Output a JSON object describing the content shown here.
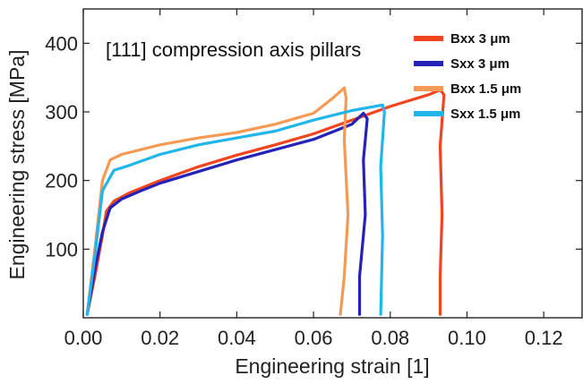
{
  "chart_data": {
    "type": "line",
    "title": "",
    "annotation": "[111] compression axis pillars",
    "xlabel": "Engineering strain [1]",
    "ylabel": "Engineering stress [MPa]",
    "xlim": [
      0,
      0.13
    ],
    "ylim": [
      0,
      450
    ],
    "x_ticks": [
      0.0,
      0.02,
      0.04,
      0.06,
      0.08,
      0.1,
      0.12
    ],
    "x_tick_labels": [
      "0.00",
      "0.02",
      "0.04",
      "0.06",
      "0.08",
      "0.10",
      "0.12"
    ],
    "y_ticks": [
      100,
      200,
      300,
      400
    ],
    "y_tick_labels": [
      "100",
      "200",
      "300",
      "400"
    ],
    "grid": false,
    "legend_position": "top-right",
    "series": [
      {
        "name": "Bxx 3 μm",
        "color": "#f0451e",
        "points": [
          [
            0.001,
            5
          ],
          [
            0.003,
            60
          ],
          [
            0.005,
            120
          ],
          [
            0.006,
            155
          ],
          [
            0.008,
            170
          ],
          [
            0.012,
            182
          ],
          [
            0.02,
            200
          ],
          [
            0.03,
            220
          ],
          [
            0.04,
            237
          ],
          [
            0.05,
            252
          ],
          [
            0.06,
            268
          ],
          [
            0.07,
            288
          ],
          [
            0.08,
            308
          ],
          [
            0.09,
            325
          ],
          [
            0.093,
            332
          ],
          [
            0.094,
            325
          ],
          [
            0.093,
            250
          ],
          [
            0.0935,
            150
          ],
          [
            0.093,
            60
          ],
          [
            0.093,
            5
          ]
        ]
      },
      {
        "name": "Sxx 3 μm",
        "color": "#2522b8",
        "points": [
          [
            0.001,
            5
          ],
          [
            0.003,
            70
          ],
          [
            0.005,
            125
          ],
          [
            0.007,
            160
          ],
          [
            0.01,
            173
          ],
          [
            0.015,
            185
          ],
          [
            0.02,
            196
          ],
          [
            0.03,
            213
          ],
          [
            0.04,
            230
          ],
          [
            0.05,
            245
          ],
          [
            0.06,
            260
          ],
          [
            0.07,
            282
          ],
          [
            0.073,
            298
          ],
          [
            0.074,
            290
          ],
          [
            0.073,
            230
          ],
          [
            0.0735,
            150
          ],
          [
            0.072,
            60
          ],
          [
            0.072,
            5
          ]
        ]
      },
      {
        "name": "Bxx 1.5 μm",
        "color": "#f59a55",
        "points": [
          [
            0.001,
            5
          ],
          [
            0.003,
            100
          ],
          [
            0.005,
            200
          ],
          [
            0.007,
            230
          ],
          [
            0.01,
            238
          ],
          [
            0.02,
            252
          ],
          [
            0.03,
            262
          ],
          [
            0.04,
            270
          ],
          [
            0.05,
            282
          ],
          [
            0.06,
            298
          ],
          [
            0.065,
            320
          ],
          [
            0.068,
            335
          ],
          [
            0.0685,
            320
          ],
          [
            0.068,
            260
          ],
          [
            0.069,
            150
          ],
          [
            0.068,
            60
          ],
          [
            0.067,
            5
          ]
        ]
      },
      {
        "name": "Sxx 1.5 μm",
        "color": "#20b6ea",
        "points": [
          [
            0.001,
            5
          ],
          [
            0.003,
            90
          ],
          [
            0.005,
            185
          ],
          [
            0.008,
            215
          ],
          [
            0.012,
            222
          ],
          [
            0.02,
            238
          ],
          [
            0.03,
            252
          ],
          [
            0.04,
            262
          ],
          [
            0.05,
            272
          ],
          [
            0.06,
            288
          ],
          [
            0.07,
            302
          ],
          [
            0.078,
            310
          ],
          [
            0.0785,
            300
          ],
          [
            0.0775,
            220
          ],
          [
            0.078,
            120
          ],
          [
            0.0775,
            5
          ]
        ]
      }
    ]
  }
}
